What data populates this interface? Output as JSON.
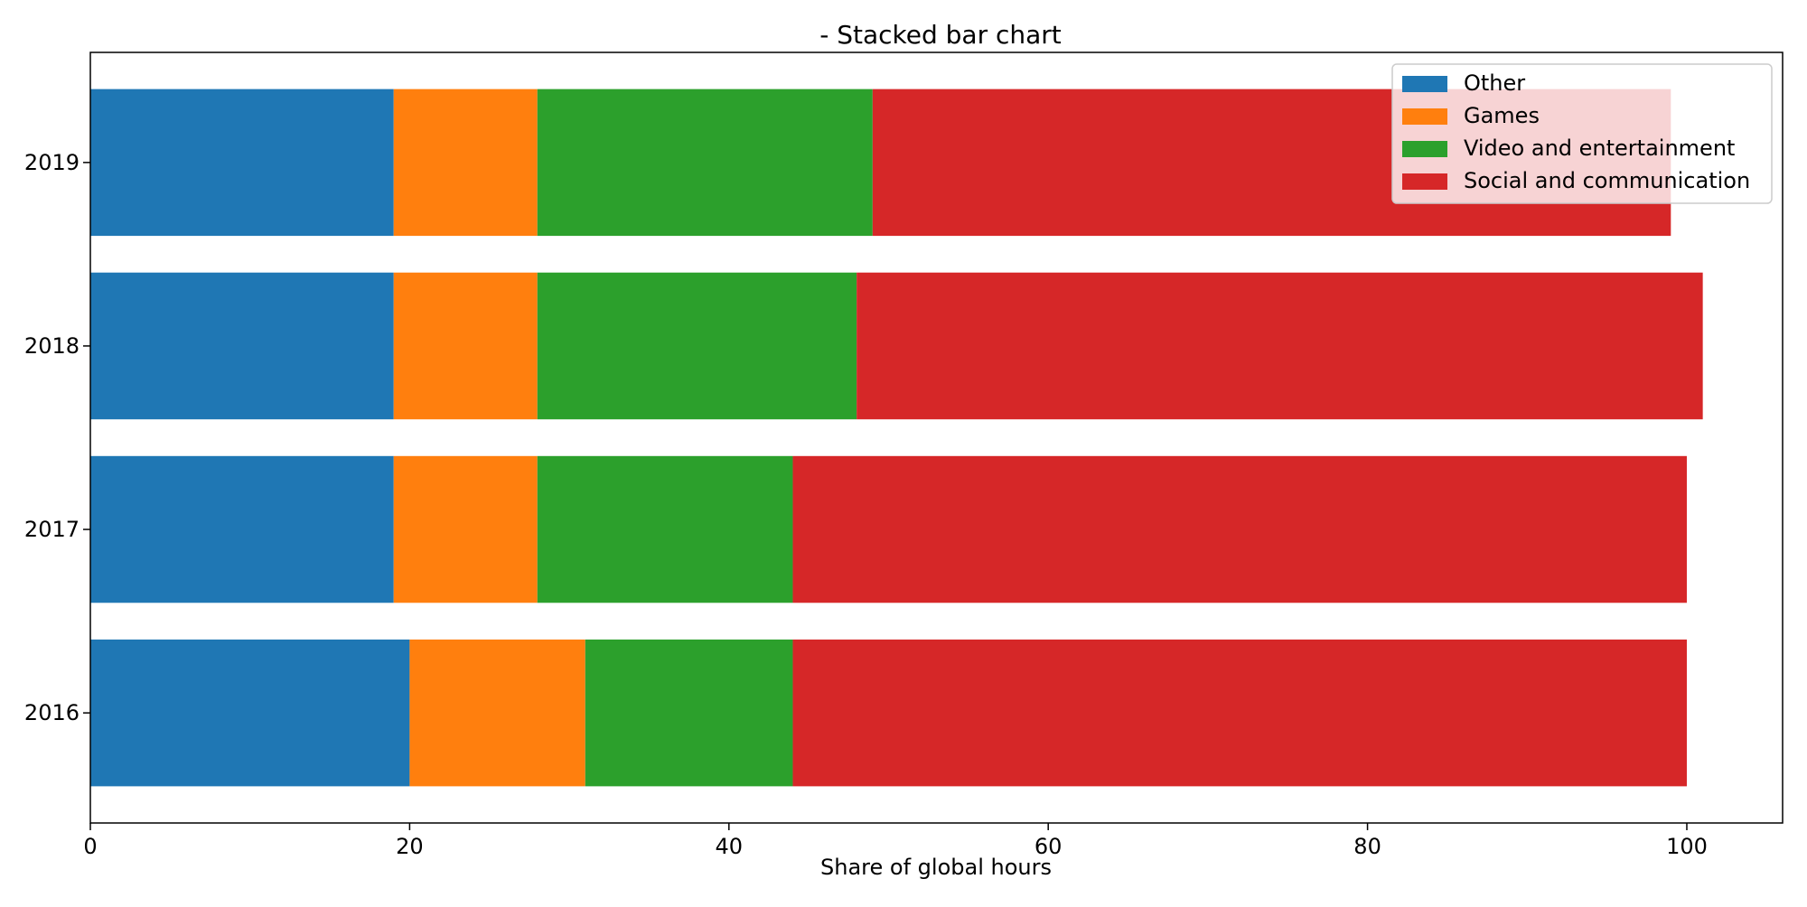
{
  "chart_data": {
    "type": "bar",
    "orientation": "horizontal",
    "stacked": true,
    "title": "- Stacked bar chart",
    "xlabel": "Share of global hours",
    "ylabel": "",
    "categories": [
      "2016",
      "2017",
      "2018",
      "2019"
    ],
    "xlim": [
      0,
      106
    ],
    "xticks": [
      0,
      20,
      40,
      60,
      80,
      100
    ],
    "grid": false,
    "legend_position": "top-right",
    "series": [
      {
        "name": "Other",
        "color": "#1f77b4",
        "values": [
          20,
          19,
          19,
          19
        ]
      },
      {
        "name": "Games",
        "color": "#ff7f0e",
        "values": [
          11,
          9,
          9,
          9
        ]
      },
      {
        "name": "Video and entertainment",
        "color": "#2ca02c",
        "values": [
          13,
          16,
          20,
          21
        ]
      },
      {
        "name": "Social and communication",
        "color": "#d62728",
        "values": [
          56,
          56,
          53,
          50
        ]
      }
    ]
  }
}
